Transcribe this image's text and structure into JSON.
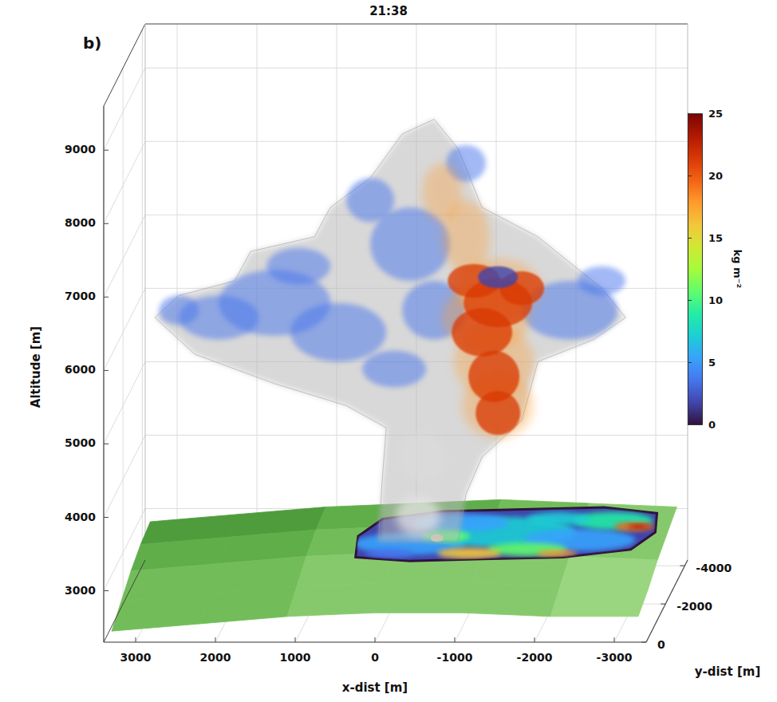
{
  "chart_data": {
    "type": "volume3d",
    "title": "21:38",
    "panel_label": "b)",
    "xlabel": "x-dist [m]",
    "ylabel": "y-dist [m]",
    "zlabel": "Altitude [m]",
    "xlim": [
      3400,
      -3400
    ],
    "xticks": [
      3000,
      2000,
      1000,
      0,
      -1000,
      -2000,
      -3000
    ],
    "ylim": [
      0,
      -4300
    ],
    "yticks": [
      0,
      -2000,
      -4000
    ],
    "zlim": [
      2300,
      9600
    ],
    "zticks": [
      3000,
      4000,
      5000,
      6000,
      7000,
      8000,
      9000
    ],
    "grid": true,
    "colorbar": {
      "label": "kg m⁻²",
      "lim": [
        0,
        25
      ],
      "ticks": [
        0,
        5,
        10,
        15,
        20,
        25
      ],
      "colors": [
        "#30123b",
        "#4145ab",
        "#4675ed",
        "#39a2fc",
        "#1bcfd4",
        "#24eca6",
        "#61fc6c",
        "#a4fc3b",
        "#d1e834",
        "#f3c63a",
        "#fe9b2d",
        "#f36315",
        "#d93806",
        "#b11901",
        "#7a0403"
      ]
    }
  }
}
